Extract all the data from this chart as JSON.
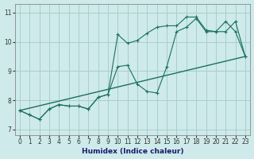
{
  "xlabel": "Humidex (Indice chaleur)",
  "xlim": [
    -0.5,
    23.5
  ],
  "ylim": [
    6.8,
    11.3
  ],
  "yticks": [
    7,
    8,
    9,
    10,
    11
  ],
  "xticks": [
    0,
    1,
    2,
    3,
    4,
    5,
    6,
    7,
    8,
    9,
    10,
    11,
    12,
    13,
    14,
    15,
    16,
    17,
    18,
    19,
    20,
    21,
    22,
    23
  ],
  "background_color": "#ceeaea",
  "grid_color": "#aacece",
  "line_color": "#1a7060",
  "line1_x": [
    0,
    1,
    2,
    3,
    4,
    5,
    6,
    7,
    8,
    9,
    10,
    11,
    12,
    13,
    14,
    15,
    16,
    17,
    18,
    19,
    20,
    21,
    22,
    23
  ],
  "line1_y": [
    7.65,
    7.5,
    7.35,
    7.7,
    7.85,
    7.8,
    7.8,
    7.7,
    8.1,
    8.2,
    9.15,
    9.2,
    8.55,
    8.3,
    8.25,
    9.15,
    10.35,
    10.5,
    10.8,
    10.35,
    10.35,
    10.35,
    10.7,
    9.5
  ],
  "line2_x": [
    0,
    1,
    2,
    3,
    4,
    5,
    6,
    7,
    8,
    9,
    10,
    11,
    12,
    13,
    14,
    15,
    16,
    17,
    18,
    19,
    20,
    21,
    22,
    23
  ],
  "line2_y": [
    7.65,
    7.5,
    7.35,
    7.7,
    7.85,
    7.8,
    7.8,
    7.7,
    8.1,
    8.2,
    10.25,
    9.95,
    10.05,
    10.3,
    10.5,
    10.55,
    10.55,
    10.85,
    10.85,
    10.4,
    10.35,
    10.7,
    10.35,
    9.5
  ],
  "line3_x": [
    0,
    23
  ],
  "line3_y": [
    7.65,
    9.5
  ]
}
